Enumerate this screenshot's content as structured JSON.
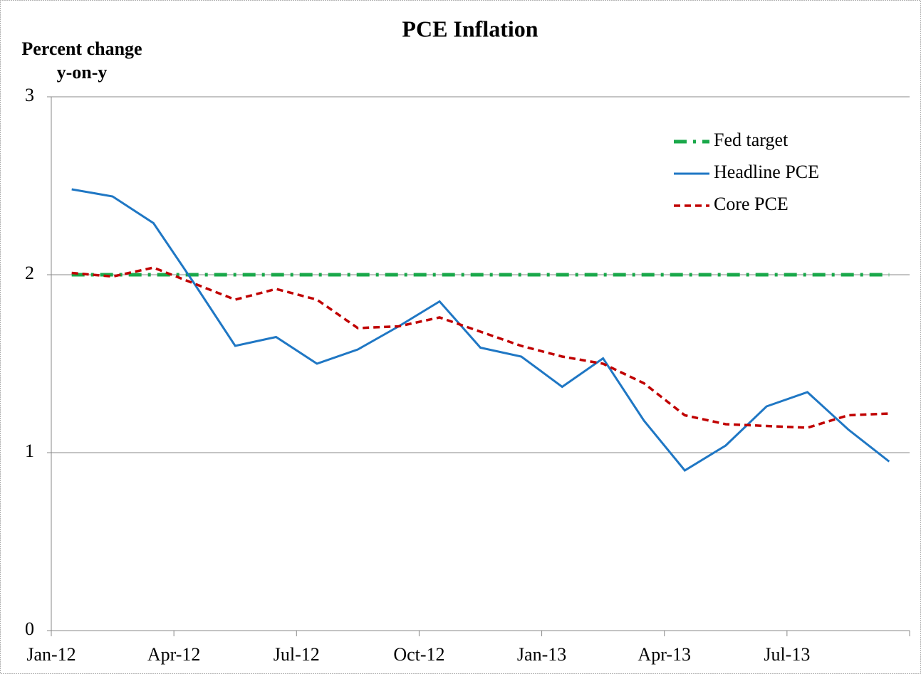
{
  "chart_data": {
    "type": "line",
    "title": "PCE Inflation",
    "y_label": [
      "Percent change",
      "y-on-y"
    ],
    "categories": [
      "Jan-12",
      null,
      null,
      "Apr-12",
      null,
      null,
      "Jul-12",
      null,
      null,
      "Oct-12",
      null,
      null,
      "Jan-13",
      null,
      null,
      "Apr-13",
      null,
      null,
      "Jul-13",
      null,
      null
    ],
    "series": [
      {
        "name": "Fed target",
        "color": "#1aa84a",
        "style": "dashdot",
        "values": [
          2,
          2,
          2,
          2,
          2,
          2,
          2,
          2,
          2,
          2,
          2,
          2,
          2,
          2,
          2,
          2,
          2,
          2,
          2,
          2,
          2
        ]
      },
      {
        "name": "Headline PCE",
        "color": "#1f77c4",
        "style": "solid",
        "values": [
          2.48,
          2.44,
          2.29,
          1.95,
          1.6,
          1.65,
          1.5,
          1.58,
          1.71,
          1.85,
          1.59,
          1.54,
          1.37,
          1.53,
          1.18,
          0.9,
          1.04,
          1.26,
          1.34,
          1.13,
          0.95
        ]
      },
      {
        "name": "Core PCE",
        "color": "#c00000",
        "style": "dashed",
        "values": [
          2.01,
          1.99,
          2.04,
          1.95,
          1.86,
          1.92,
          1.86,
          1.7,
          1.71,
          1.76,
          1.68,
          1.6,
          1.54,
          1.5,
          1.39,
          1.21,
          1.16,
          1.15,
          1.14,
          1.21,
          1.22
        ]
      }
    ],
    "ylim": [
      0,
      3
    ],
    "yticks": [
      0,
      1,
      2,
      3
    ],
    "grid": true,
    "legend": "upper right"
  }
}
